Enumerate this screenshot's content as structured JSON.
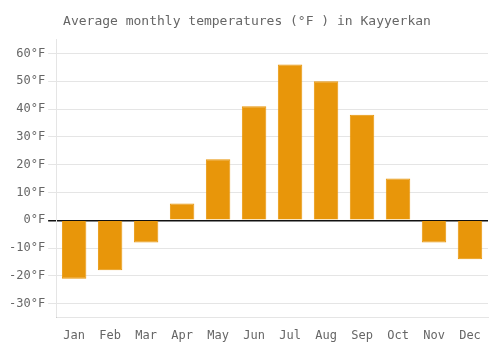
{
  "chart_data": {
    "type": "bar",
    "title": "Average monthly temperatures (°F ) in Kayyerkan",
    "categories": [
      "Jan",
      "Feb",
      "Mar",
      "Apr",
      "May",
      "Jun",
      "Jul",
      "Aug",
      "Sep",
      "Oct",
      "Nov",
      "Dec"
    ],
    "values": [
      -21,
      -18,
      -8,
      6,
      22,
      41,
      56,
      50,
      38,
      15,
      -8,
      -14
    ],
    "color": "#E8960A",
    "ylim": [
      -35,
      65
    ],
    "yticks": [
      {
        "value": -30,
        "label": "-30°F"
      },
      {
        "value": -20,
        "label": "-20°F"
      },
      {
        "value": -10,
        "label": "-10°F"
      },
      {
        "value": 0,
        "label": "0°F"
      },
      {
        "value": 10,
        "label": "10°F"
      },
      {
        "value": 20,
        "label": "20°F"
      },
      {
        "value": 30,
        "label": "30°F"
      },
      {
        "value": 40,
        "label": "40°F"
      },
      {
        "value": 50,
        "label": "50°F"
      },
      {
        "value": 60,
        "label": "60°F"
      }
    ],
    "grid": true
  }
}
